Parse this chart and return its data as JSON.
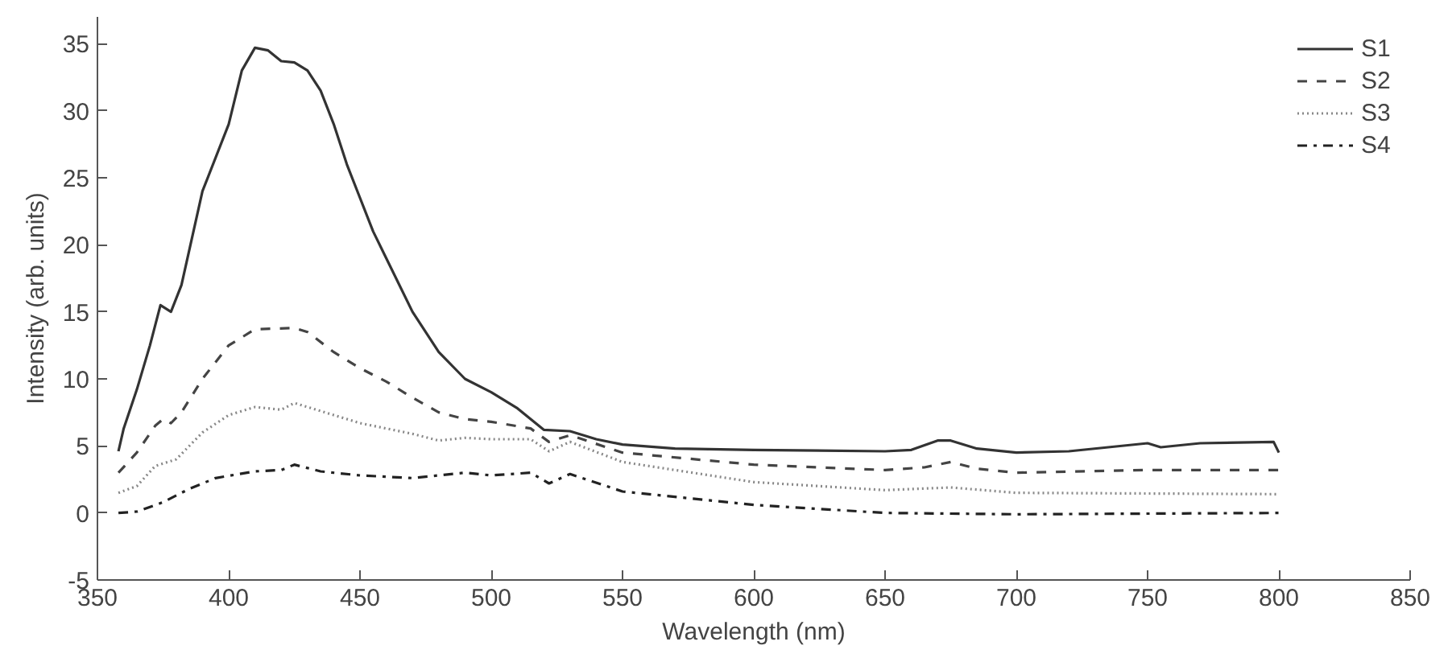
{
  "chart_data": {
    "type": "line",
    "xlabel": "Wavelength (nm)",
    "ylabel": "Intensity (arb. units)",
    "xlim": [
      350,
      850
    ],
    "xticks": [
      350,
      400,
      450,
      500,
      550,
      600,
      650,
      700,
      750,
      800,
      850
    ],
    "ylim": [
      -5,
      37
    ],
    "yticks": [
      -5,
      0,
      5,
      10,
      15,
      20,
      25,
      30,
      35
    ],
    "grid": false,
    "legend": "top right",
    "series": [
      {
        "name": "S1",
        "color": "#333333",
        "line_style": "solid",
        "x": [
          358,
          360,
          365,
          370,
          374,
          378,
          382,
          390,
          400,
          405,
          410,
          415,
          420,
          425,
          430,
          435,
          440,
          445,
          450,
          455,
          460,
          470,
          480,
          490,
          500,
          510,
          515,
          520,
          530,
          540,
          550,
          570,
          600,
          650,
          660,
          670,
          675,
          685,
          700,
          720,
          750,
          755,
          770,
          798,
          800
        ],
        "values": [
          4.6,
          6.3,
          9.2,
          12.5,
          15.5,
          15,
          17,
          24,
          29,
          33,
          34.7,
          34.5,
          33.7,
          33.6,
          33,
          31.5,
          29,
          26,
          23.5,
          21,
          19,
          15,
          12,
          10,
          9,
          7.8,
          7,
          6.2,
          6.1,
          5.5,
          5.1,
          4.8,
          4.7,
          4.6,
          4.7,
          5.4,
          5.4,
          4.8,
          4.5,
          4.6,
          5.2,
          4.9,
          5.2,
          5.3,
          4.5
        ]
      },
      {
        "name": "S2",
        "color": "#444444",
        "line_style": "dashed",
        "x": [
          358,
          365,
          372,
          375,
          378,
          382,
          390,
          400,
          410,
          425,
          430,
          440,
          450,
          460,
          470,
          480,
          490,
          500,
          515,
          522,
          530,
          550,
          600,
          650,
          665,
          675,
          685,
          700,
          750,
          800
        ],
        "values": [
          3,
          4.5,
          6.5,
          7,
          6.7,
          7.5,
          10,
          12.5,
          13.7,
          13.8,
          13.5,
          12,
          10.8,
          9.8,
          8.6,
          7.5,
          7,
          6.8,
          6.3,
          5.3,
          5.8,
          4.5,
          3.6,
          3.2,
          3.4,
          3.8,
          3.3,
          3,
          3.2,
          3.2
        ]
      },
      {
        "name": "S3",
        "color": "#888888",
        "line_style": "dotted",
        "x": [
          358,
          365,
          372,
          380,
          390,
          400,
          410,
          420,
          425,
          435,
          450,
          470,
          480,
          490,
          500,
          515,
          522,
          530,
          550,
          600,
          650,
          675,
          700,
          800
        ],
        "values": [
          1.5,
          2,
          3.5,
          4,
          6,
          7.3,
          7.9,
          7.7,
          8.2,
          7.6,
          6.7,
          5.9,
          5.4,
          5.6,
          5.5,
          5.5,
          4.6,
          5.3,
          3.8,
          2.3,
          1.7,
          1.9,
          1.5,
          1.4
        ]
      },
      {
        "name": "S4",
        "color": "#222222",
        "line_style": "dashdot",
        "x": [
          358,
          365,
          375,
          385,
          395,
          410,
          420,
          425,
          435,
          450,
          470,
          490,
          500,
          515,
          522,
          530,
          550,
          600,
          650,
          700,
          800
        ],
        "values": [
          0,
          0.1,
          0.8,
          1.8,
          2.6,
          3.1,
          3.2,
          3.6,
          3.1,
          2.8,
          2.6,
          3,
          2.8,
          3,
          2.2,
          2.9,
          1.6,
          0.6,
          0,
          -0.1,
          0
        ]
      }
    ]
  }
}
